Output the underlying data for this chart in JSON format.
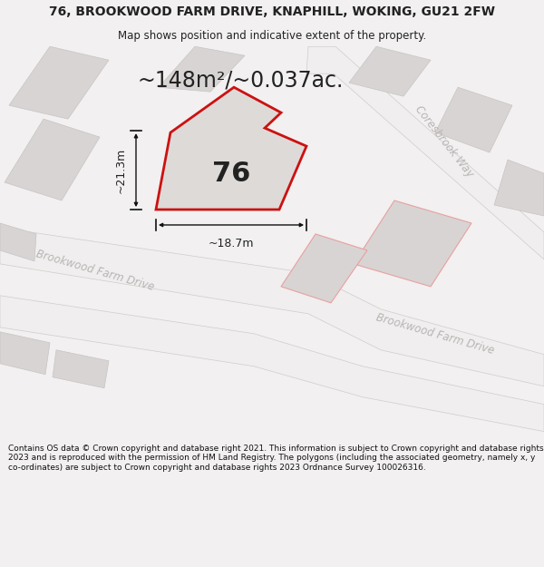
{
  "title": "76, BROOKWOOD FARM DRIVE, KNAPHILL, WOKING, GU21 2FW",
  "subtitle": "Map shows position and indicative extent of the property.",
  "area_text": "~148m²/~0.037ac.",
  "dim_width": "~18.7m",
  "dim_height": "~21.3m",
  "number_label": "76",
  "footer_text": "Contains OS data © Crown copyright and database right 2021. This information is subject to Crown copyright and database rights 2023 and is reproduced with the permission of HM Land Registry. The polygons (including the associated geometry, namely x, y co-ordinates) are subject to Crown copyright and database rights 2023 Ordnance Survey 100026316.",
  "bg_color": "#f2f0f0",
  "map_bg": "#e8e4e4",
  "block_fill": "#d8d4d4",
  "block_edge": "#c8c4c4",
  "road_fill": "#f0eeee",
  "road_edge": "#d0cccc",
  "red_stroke": "#cc1111",
  "pink_stroke": "#e8a0a0",
  "plot_fill": "#dedad8",
  "text_color": "#222222",
  "dim_color": "#111111",
  "street_color": "#b8b4b4",
  "footer_bg": "#ffffff",
  "title_fontsize": 10,
  "subtitle_fontsize": 8.5,
  "area_fontsize": 17,
  "label_fontsize": 22,
  "dim_fontsize": 9,
  "street_fontsize": 8.5,
  "footer_fontsize": 6.5
}
